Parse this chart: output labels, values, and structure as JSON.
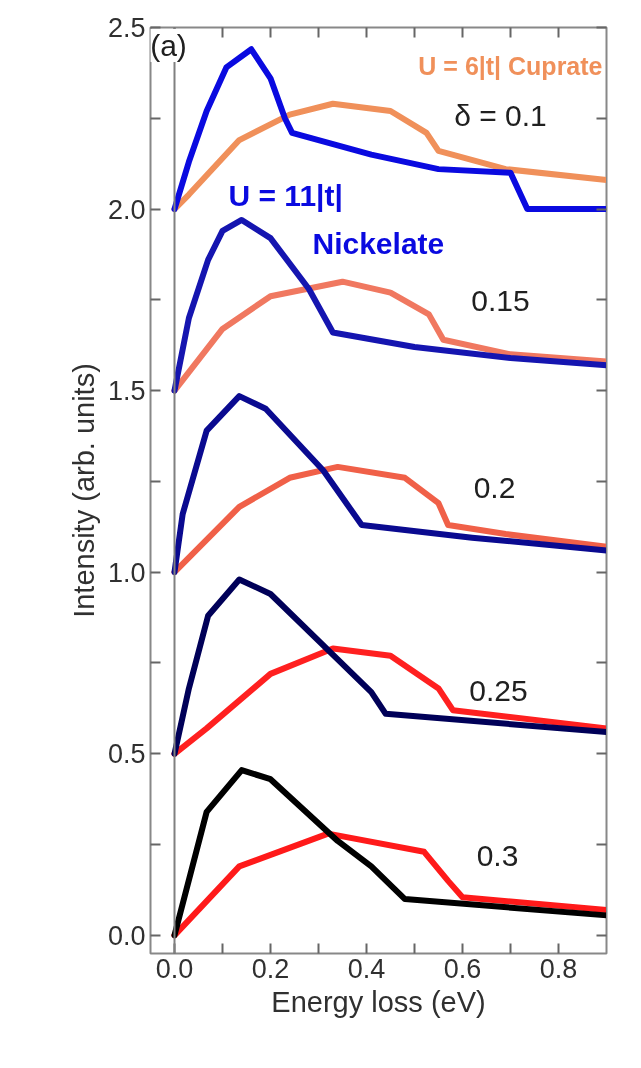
{
  "chart_data": {
    "type": "line",
    "xlabel": "Energy loss (eV)",
    "ylabel": "Intensity (arb. units)",
    "xlim": [
      -0.05,
      0.9
    ],
    "ylim": [
      -0.05,
      2.5
    ],
    "xticks": [
      {
        "value": 0,
        "label": "0.0"
      },
      {
        "value": 0.1,
        "label": null
      },
      0.2,
      {
        "value": 0.3,
        "label": null
      },
      0.4,
      {
        "value": 0.5,
        "label": null
      },
      0.6,
      {
        "value": 0.7,
        "label": null
      },
      0.8
    ],
    "yticks": [
      {
        "value": 0,
        "label": "0.0"
      },
      {
        "value": 0.25,
        "label": null
      },
      0.5,
      {
        "value": 0.75,
        "label": null
      },
      {
        "value": 1,
        "label": "1.0"
      },
      {
        "value": 1.25,
        "label": null
      },
      1.5,
      {
        "value": 1.75,
        "label": null
      },
      {
        "value": 2,
        "label": "2.0"
      },
      {
        "value": 2.25,
        "label": null
      },
      2.5
    ],
    "grid": false,
    "marker": "none",
    "line_style": "solid",
    "ref_lines": [
      {
        "axis": "x",
        "value": 0,
        "color": "#808080"
      }
    ],
    "series": [
      {
        "name": "U = 6|t| Cuprate",
        "color": "#f0905a",
        "x": [
          0,
          0.03,
          0.135,
          0.24,
          0.33,
          0.45,
          0.525,
          0.55,
          0.69,
          0.9
        ],
        "values": [
          2.0,
          2.04,
          2.19,
          2.26,
          2.29,
          2.27,
          2.21,
          2.16,
          2.11,
          2.08
        ]
      },
      {
        "name": "U = 11|t|\nNickelate",
        "color": "#0a0ae0",
        "x": [
          0,
          0.03,
          0.067,
          0.108,
          0.16,
          0.2,
          0.23,
          0.245,
          0.41,
          0.55,
          0.7,
          0.735,
          0.9
        ],
        "values": [
          2.0,
          2.13,
          2.27,
          2.39,
          2.44,
          2.36,
          2.25,
          2.21,
          2.15,
          2.11,
          2.1,
          2.0,
          2.0
        ]
      },
      {
        "color": "#f07860",
        "x": [
          0,
          0.1,
          0.2,
          0.35,
          0.45,
          0.53,
          0.56,
          0.7,
          0.9
        ],
        "values": [
          1.5,
          1.67,
          1.76,
          1.8,
          1.77,
          1.71,
          1.64,
          1.6,
          1.58
        ]
      },
      {
        "color": "#1515b0",
        "x": [
          0,
          0.03,
          0.07,
          0.1,
          0.14,
          0.2,
          0.28,
          0.33,
          0.5,
          0.7,
          0.9
        ],
        "values": [
          1.5,
          1.7,
          1.86,
          1.94,
          1.97,
          1.92,
          1.78,
          1.66,
          1.62,
          1.59,
          1.57
        ]
      },
      {
        "color": "#f06048",
        "x": [
          0,
          0.135,
          0.24,
          0.34,
          0.48,
          0.55,
          0.57,
          0.69,
          0.9
        ],
        "values": [
          1.0,
          1.18,
          1.26,
          1.29,
          1.26,
          1.19,
          1.13,
          1.105,
          1.07
        ]
      },
      {
        "color": "#0a0a90",
        "x": [
          0,
          0.017,
          0.067,
          0.135,
          0.19,
          0.31,
          0.39,
          0.62,
          0.9
        ],
        "values": [
          1.0,
          1.16,
          1.39,
          1.485,
          1.45,
          1.28,
          1.13,
          1.095,
          1.06
        ]
      },
      {
        "color": "#ff2020",
        "x": [
          0,
          0.067,
          0.2,
          0.33,
          0.45,
          0.55,
          0.58,
          0.9
        ],
        "values": [
          0.5,
          0.57,
          0.72,
          0.79,
          0.77,
          0.68,
          0.62,
          0.57
        ]
      },
      {
        "color": "#000058",
        "x": [
          0,
          0.03,
          0.07,
          0.135,
          0.2,
          0.34,
          0.41,
          0.44,
          0.9
        ],
        "values": [
          0.5,
          0.68,
          0.88,
          0.98,
          0.94,
          0.76,
          0.67,
          0.61,
          0.56
        ]
      },
      {
        "color": "#ff1a1a",
        "x": [
          0,
          0.135,
          0.32,
          0.52,
          0.57,
          0.6,
          0.9
        ],
        "values": [
          0.0,
          0.19,
          0.28,
          0.23,
          0.15,
          0.105,
          0.07
        ]
      },
      {
        "color": "#000000",
        "x": [
          0,
          0.067,
          0.14,
          0.2,
          0.34,
          0.41,
          0.48,
          0.9
        ],
        "values": [
          0.0,
          0.34,
          0.455,
          0.43,
          0.26,
          0.19,
          0.1,
          0.055
        ]
      }
    ],
    "annotations": [
      "(a)",
      "δ = 0.1",
      "0.15",
      "0.2",
      "0.25",
      "0.3"
    ]
  }
}
